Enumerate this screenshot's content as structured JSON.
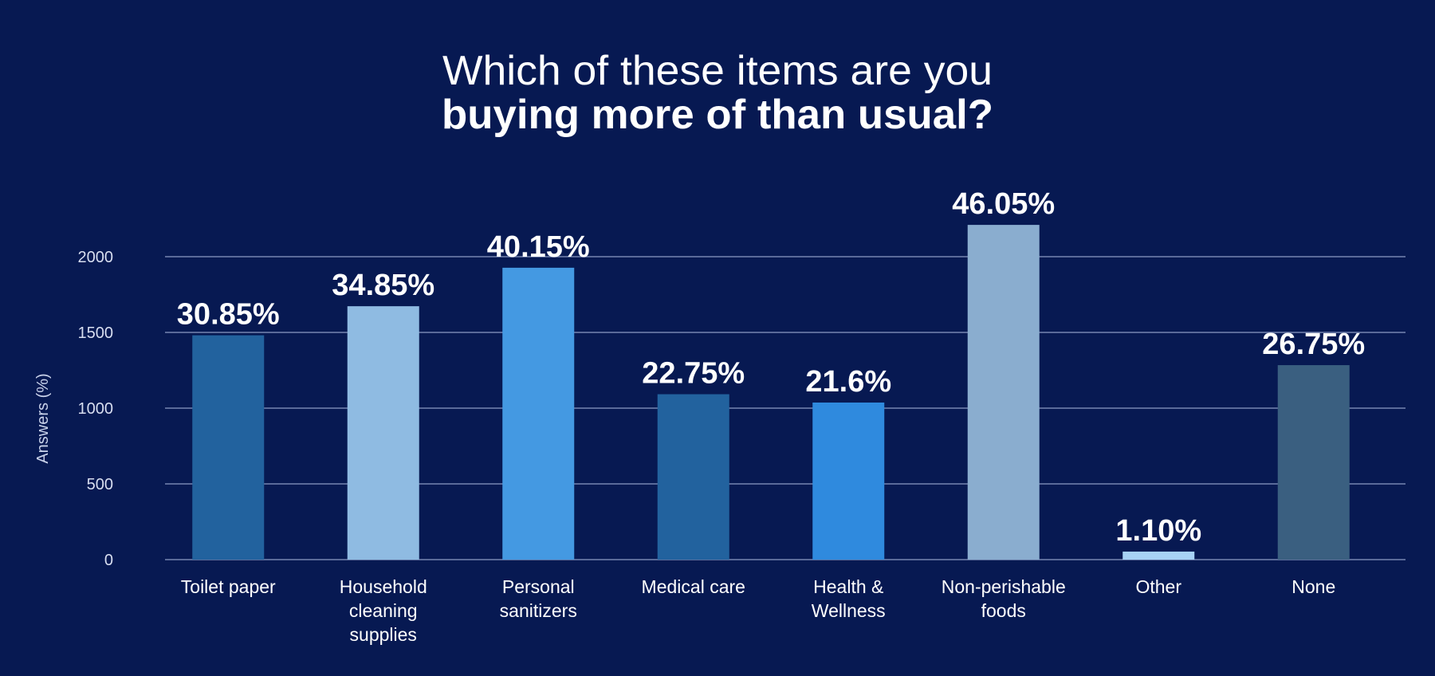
{
  "chart_data": {
    "type": "bar",
    "title": "Which of these items are you",
    "title_bold": "buying more of than usual?",
    "xlabel": "",
    "ylabel": "Answers (%)",
    "ylim": [
      0,
      2000
    ],
    "yticks": [
      0,
      500,
      1000,
      1500,
      2000
    ],
    "grid": true,
    "categories": [
      [
        "Toilet paper"
      ],
      [
        "Household",
        "cleaning",
        "supplies"
      ],
      [
        "Personal",
        "sanitizers"
      ],
      [
        "Medical care"
      ],
      [
        "Health &",
        "Wellness"
      ],
      [
        "Non-perishable",
        "foods"
      ],
      [
        "Other"
      ],
      [
        "None"
      ]
    ],
    "values": [
      1481,
      1673,
      1927,
      1092,
      1037,
      2210,
      53,
      1284
    ],
    "data_labels": [
      "30.85%",
      "34.85%",
      "40.15%",
      "22.75%",
      "21.6%",
      "46.05%",
      "1.10%",
      "26.75%"
    ],
    "colors": [
      "#22629e",
      "#8fbbe2",
      "#4499e2",
      "#22629e",
      "#2f8ade",
      "#8aadcf",
      "#a7d2f5",
      "#3a5f80"
    ],
    "background": "#071952",
    "gridline_color": "#5a6a99"
  }
}
